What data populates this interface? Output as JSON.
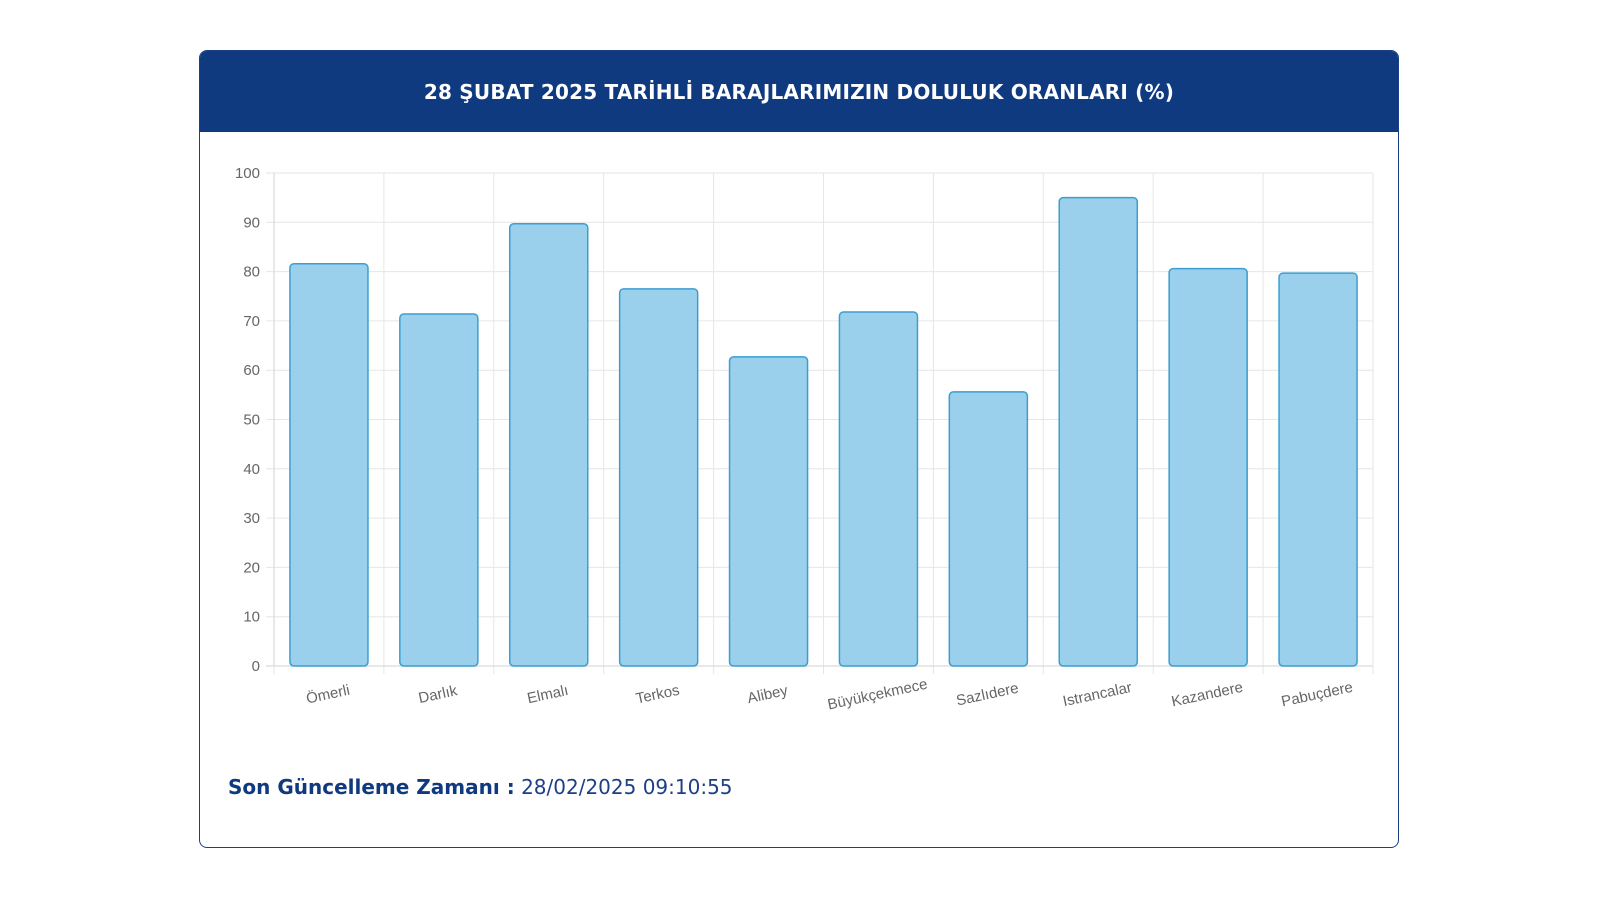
{
  "header": {
    "title": "28 ŞUBAT 2025 TARİHLİ BARAJLARIMIZIN DOLULUK ORANLARI (%)"
  },
  "footer": {
    "update_label": "Son Güncelleme Zamanı :",
    "update_value": "28/02/2025 09:10:55"
  },
  "colors": {
    "header_bg": "#0f3a80",
    "bar_fill": "#9bd0ec",
    "bar_stroke": "#3a9fd0",
    "grid": "#e6e6e6",
    "tick_text": "#666666"
  },
  "chart_data": {
    "type": "bar",
    "categories": [
      "Ömerli",
      "Darlık",
      "Elmalı",
      "Terkos",
      "Alibey",
      "Büyükçekmece",
      "Sazlıdere",
      "Istrancalar",
      "Kazandere",
      "Pabuçdere"
    ],
    "values": [
      81.6,
      71.4,
      89.7,
      76.5,
      62.7,
      71.8,
      55.6,
      95.0,
      80.6,
      79.7
    ],
    "ylim": [
      0,
      100
    ],
    "yticks": [
      0,
      10,
      20,
      30,
      40,
      50,
      60,
      70,
      80,
      90,
      100
    ],
    "grid": true,
    "legend": "none"
  }
}
